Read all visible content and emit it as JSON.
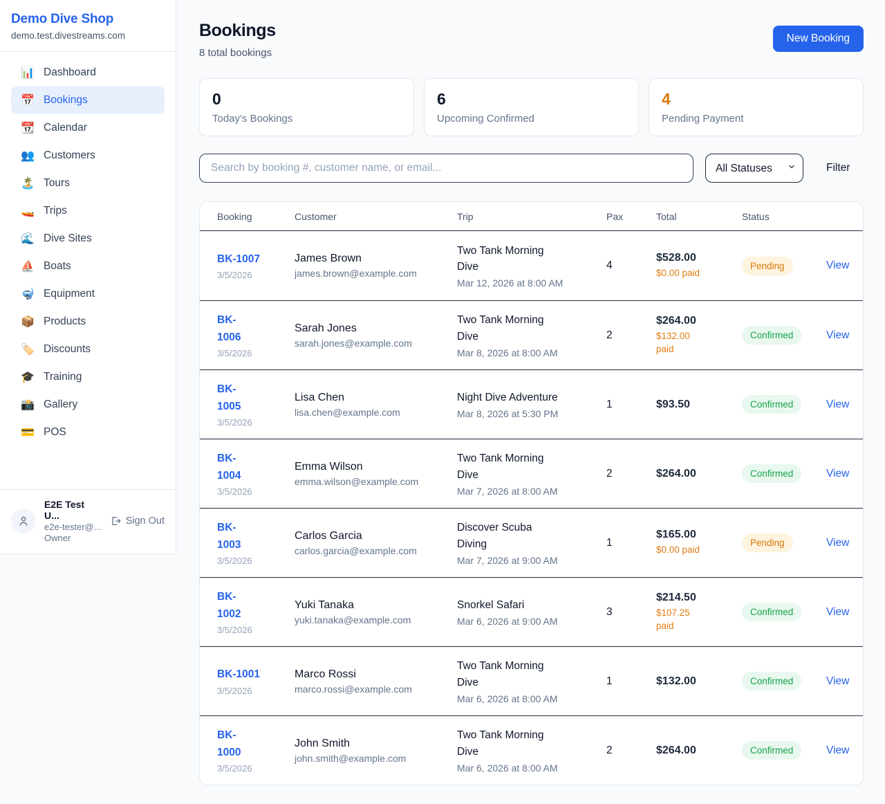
{
  "sidebar": {
    "brand": {
      "name": "Demo Dive Shop",
      "domain": "demo.test.divestreams.com"
    },
    "items": [
      {
        "label": "Dashboard",
        "icon": "📊",
        "active": false
      },
      {
        "label": "Bookings",
        "icon": "📅",
        "active": true
      },
      {
        "label": "Calendar",
        "icon": "📆",
        "active": false
      },
      {
        "label": "Customers",
        "icon": "👥",
        "active": false
      },
      {
        "label": "Tours",
        "icon": "🏝️",
        "active": false
      },
      {
        "label": "Trips",
        "icon": "🚤",
        "active": false
      },
      {
        "label": "Dive Sites",
        "icon": "🌊",
        "active": false
      },
      {
        "label": "Boats",
        "icon": "⛵",
        "active": false
      },
      {
        "label": "Equipment",
        "icon": "🤿",
        "active": false
      },
      {
        "label": "Products",
        "icon": "📦",
        "active": false
      },
      {
        "label": "Discounts",
        "icon": "🏷️",
        "active": false
      },
      {
        "label": "Training",
        "icon": "🎓",
        "active": false
      },
      {
        "label": "Gallery",
        "icon": "📸",
        "active": false
      },
      {
        "label": "POS",
        "icon": "💳",
        "active": false
      }
    ],
    "user": {
      "name": "E2E Test U...",
      "email": "e2e-tester@...",
      "role": "Owner",
      "sign_out_label": "Sign Out"
    }
  },
  "header": {
    "title": "Bookings",
    "subtitle": "8 total bookings",
    "new_booking_label": "New Booking"
  },
  "stats": [
    {
      "value": "0",
      "label": "Today's Bookings",
      "color": "dark"
    },
    {
      "value": "6",
      "label": "Upcoming Confirmed",
      "color": "dark"
    },
    {
      "value": "4",
      "label": "Pending Payment",
      "color": "orange"
    }
  ],
  "filters": {
    "search_placeholder": "Search by booking #, customer name, or email...",
    "status_selected": "All Statuses",
    "filter_label": "Filter"
  },
  "table": {
    "columns": [
      "Booking",
      "Customer",
      "Trip",
      "Pax",
      "Total",
      "Status"
    ],
    "view_label": "View",
    "rows": [
      {
        "id": "BK-1007",
        "id_display": "BK-1007",
        "date": "3/5/2026",
        "customer": "James Brown",
        "email": "james.brown@example.com",
        "trip": "Two Tank Morning\nDive",
        "trip_datetime": "Mar 12, 2026 at 8:00 AM",
        "pax": "4",
        "total": "$528.00",
        "paid": "$0.00 paid",
        "status": "Pending",
        "status_type": "pending"
      },
      {
        "id": "BK-1006",
        "id_display": "BK-\n1006",
        "date": "3/5/2026",
        "customer": "Sarah Jones",
        "email": "sarah.jones@example.com",
        "trip": "Two Tank Morning\nDive",
        "trip_datetime": "Mar 8, 2026 at 8:00 AM",
        "pax": "2",
        "total": "$264.00",
        "paid": "$132.00 paid",
        "status": "Confirmed",
        "status_type": "confirmed"
      },
      {
        "id": "BK-1005",
        "id_display": "BK-\n1005",
        "date": "3/5/2026",
        "customer": "Lisa Chen",
        "email": "lisa.chen@example.com",
        "trip": "Night Dive Adventure",
        "trip_datetime": "Mar 8, 2026 at 5:30 PM",
        "pax": "1",
        "total": "$93.50",
        "paid": null,
        "status": "Confirmed",
        "status_type": "confirmed"
      },
      {
        "id": "BK-1004",
        "id_display": "BK-\n1004",
        "date": "3/5/2026",
        "customer": "Emma Wilson",
        "email": "emma.wilson@example.com",
        "trip": "Two Tank Morning\nDive",
        "trip_datetime": "Mar 7, 2026 at 8:00 AM",
        "pax": "2",
        "total": "$264.00",
        "paid": null,
        "status": "Confirmed",
        "status_type": "confirmed"
      },
      {
        "id": "BK-1003",
        "id_display": "BK-\n1003",
        "date": "3/5/2026",
        "customer": "Carlos Garcia",
        "email": "carlos.garcia@example.com",
        "trip": "Discover Scuba\nDiving",
        "trip_datetime": "Mar 7, 2026 at 9:00 AM",
        "pax": "1",
        "total": "$165.00",
        "paid": "$0.00 paid",
        "status": "Pending",
        "status_type": "pending"
      },
      {
        "id": "BK-1002",
        "id_display": "BK-\n1002",
        "date": "3/5/2026",
        "customer": "Yuki Tanaka",
        "email": "yuki.tanaka@example.com",
        "trip": "Snorkel Safari",
        "trip_datetime": "Mar 6, 2026 at 9:00 AM",
        "pax": "3",
        "total": "$214.50",
        "paid": "$107.25 paid",
        "status": "Confirmed",
        "status_type": "confirmed"
      },
      {
        "id": "BK-1001",
        "id_display": "BK-1001",
        "date": "3/5/2026",
        "customer": "Marco Rossi",
        "email": "marco.rossi@example.com",
        "trip": "Two Tank Morning\nDive",
        "trip_datetime": "Mar 6, 2026 at 8:00 AM",
        "pax": "1",
        "total": "$132.00",
        "paid": null,
        "status": "Confirmed",
        "status_type": "confirmed"
      },
      {
        "id": "BK-1000",
        "id_display": "BK-\n1000",
        "date": "3/5/2026",
        "customer": "John Smith",
        "email": "john.smith@example.com",
        "trip": "Two Tank Morning\nDive",
        "trip_datetime": "Mar 6, 2026 at 8:00 AM",
        "pax": "2",
        "total": "$264.00",
        "paid": null,
        "status": "Confirmed",
        "status_type": "confirmed"
      }
    ]
  },
  "colors": {
    "accent_blue": "#2563eb",
    "pending_orange": "#d97706",
    "confirmed_green": "#16a34a",
    "page_background": "#f8fafc"
  }
}
